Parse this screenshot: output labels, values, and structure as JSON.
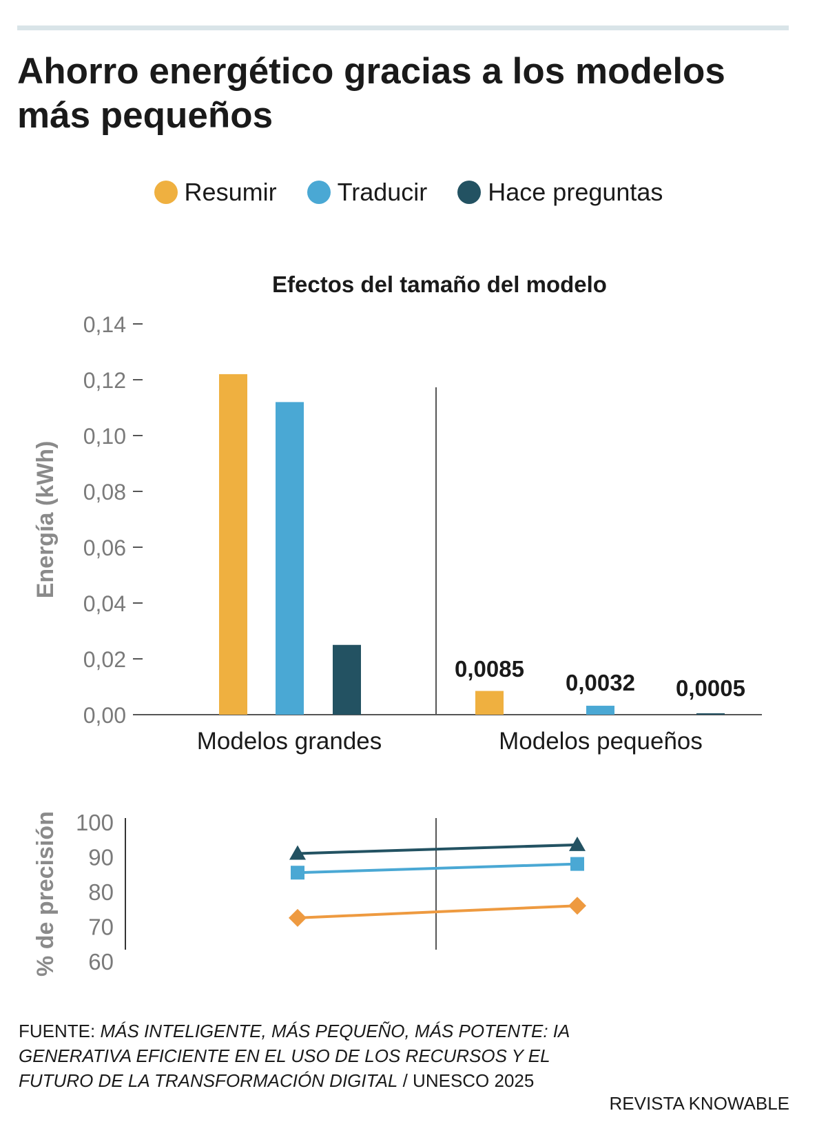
{
  "title": "Ahorro energético gracias a los modelos más pequeños",
  "legend": [
    {
      "label": "Resumir",
      "color": "#efb040"
    },
    {
      "label": "Traducir",
      "color": "#4aa8d4"
    },
    {
      "label": "Hace preguntas",
      "color": "#235262"
    }
  ],
  "chart_data": [
    {
      "type": "bar",
      "title": "Efectos del tamaño del modelo",
      "ylabel": "Energía (kWh)",
      "ylim": [
        0,
        0.14
      ],
      "yticks": [
        "0,00",
        "0,02",
        "0,04",
        "0,06",
        "0,08",
        "0,10",
        "0,12",
        "0,14"
      ],
      "categories": [
        "Modelos grandes",
        "Modelos pequeños"
      ],
      "series": [
        {
          "name": "Resumir",
          "color": "#efb040",
          "values": [
            0.122,
            0.0085
          ]
        },
        {
          "name": "Traducir",
          "color": "#4aa8d4",
          "values": [
            0.112,
            0.0032
          ]
        },
        {
          "name": "Hace preguntas",
          "color": "#235262",
          "values": [
            0.025,
            0.0005
          ]
        }
      ],
      "data_labels": [
        "0,0085",
        "0,0032",
        "0,0005"
      ]
    },
    {
      "type": "line",
      "ylabel": "% de precisión",
      "ylim": [
        60,
        100
      ],
      "yticks": [
        "60",
        "70",
        "80",
        "90",
        "100"
      ],
      "categories": [
        "Modelos grandes",
        "Modelos pequeños"
      ],
      "series": [
        {
          "name": "Hace preguntas",
          "color": "#235262",
          "marker": "triangle",
          "values": [
            91,
            93.5
          ]
        },
        {
          "name": "Traducir",
          "color": "#4aa8d4",
          "marker": "square",
          "values": [
            85.5,
            88
          ]
        },
        {
          "name": "Resumir",
          "color": "#ee9a40",
          "marker": "diamond",
          "values": [
            72.5,
            76
          ]
        }
      ]
    }
  ],
  "footer": {
    "source_prefix": "FUENTE: ",
    "source_text": "MÁS INTELIGENTE, MÁS PEQUEÑO, MÁS POTENTE: IA GENERATIVA EFICIENTE EN EL USO DE LOS RECURSOS Y EL FUTURO DE LA TRANSFORMACIÓN DIGITAL",
    "source_suffix": " / UNESCO 2025",
    "credit": "REVISTA KNOWABLE"
  }
}
